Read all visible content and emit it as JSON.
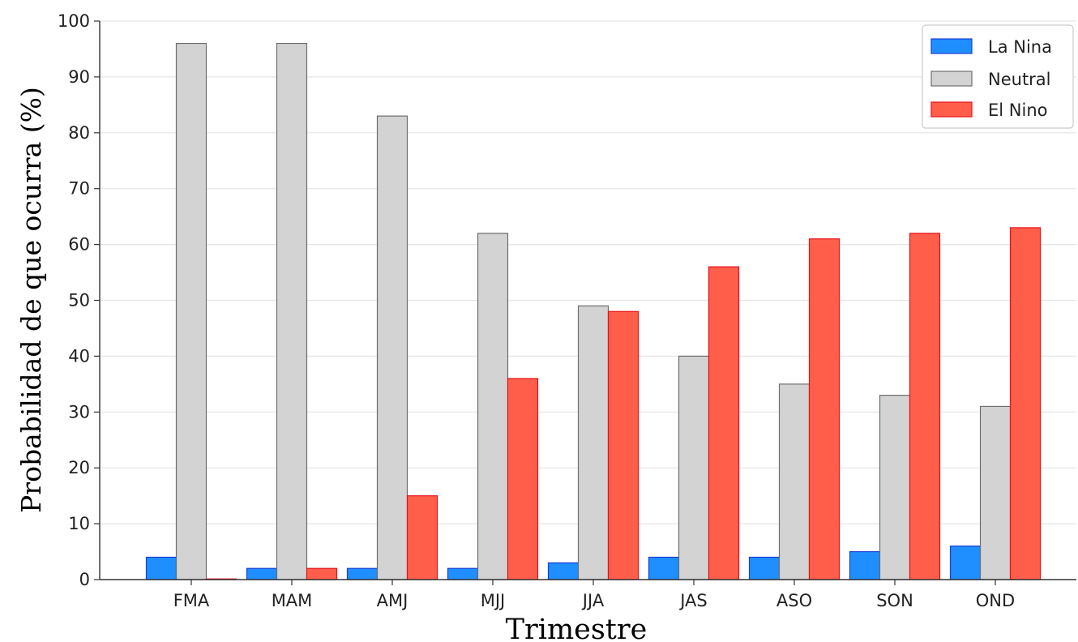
{
  "chart_data": {
    "type": "bar",
    "title": "",
    "xlabel": "Trimestre",
    "ylabel": "Probabilidad de que ocurra (%)",
    "ylim": [
      0,
      100
    ],
    "yticks": [
      0,
      10,
      20,
      30,
      40,
      50,
      60,
      70,
      80,
      90,
      100
    ],
    "grid": "horizontal",
    "legend_position": "top-right",
    "categories": [
      "FMA",
      "MAM",
      "AMJ",
      "MJJ",
      "JJA",
      "JAS",
      "ASO",
      "SON",
      "OND"
    ],
    "series": [
      {
        "name": "La Nina",
        "color": "#1f8fff",
        "edge": "#1a3fd6",
        "values": [
          4,
          2,
          2,
          2,
          3,
          4,
          4,
          5,
          6
        ]
      },
      {
        "name": "Neutral",
        "color": "#d3d3d3",
        "edge": "#6e6e6e",
        "values": [
          96,
          96,
          83,
          62,
          49,
          40,
          35,
          33,
          31
        ]
      },
      {
        "name": "El Nino",
        "color": "#ff5f4a",
        "edge": "#e8101a",
        "values": [
          0,
          2,
          15,
          36,
          48,
          56,
          61,
          62,
          63
        ]
      }
    ]
  }
}
